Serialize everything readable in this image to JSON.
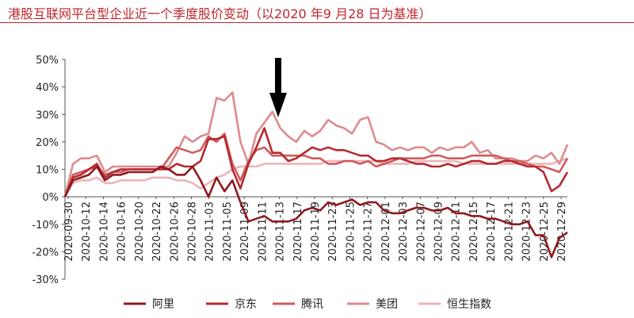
{
  "header": {
    "title": "港股互联网平台型企业近一个季度股价变动（以2020 年9 月28 日为基准）"
  },
  "chart_data": {
    "type": "line",
    "title": "港股互联网平台型企业近一个季度股价变动（以2020 年9 月28 日为基准）",
    "xlabel": "",
    "ylabel": "",
    "ylim": [
      -30,
      50
    ],
    "yticks": [
      "50%",
      "40%",
      "30%",
      "20%",
      "10%",
      "0%",
      "-10%",
      "-20%",
      "-30%"
    ],
    "ytick_values": [
      50,
      40,
      30,
      20,
      10,
      0,
      -10,
      -20,
      -30
    ],
    "xtick_labels": [
      "2020-09-30",
      "2020-10-12",
      "2020-10-14",
      "2020-10-16",
      "2020-10-20",
      "2020-10-22",
      "2020-10-26",
      "2020-10-28",
      "2020-11-03",
      "2020-11-05",
      "2020-11-09",
      "2020-11-11",
      "2020-11-13",
      "2020-11-17",
      "2020-11-19",
      "2020-11-23",
      "2020-11-25",
      "2020-11-27",
      "2020-12-01",
      "2020-12-03",
      "2020-12-07",
      "2020-12-09",
      "2020-12-11",
      "2020-12-15",
      "2020-12-17",
      "2020-12-21",
      "2020-12-23",
      "2020-12-25",
      "2020-12-29"
    ],
    "grid": false,
    "legend_position": "bottom",
    "annotation": "down-arrow at 2020-11-11",
    "series": [
      {
        "name": "阿里",
        "color": "#8b1a1f",
        "values": [
          0,
          6,
          7,
          8,
          11,
          6,
          8,
          8,
          9,
          9,
          9,
          9,
          11,
          10,
          8,
          8,
          11,
          6,
          0,
          7,
          2,
          6,
          -2,
          -9,
          -8,
          -7,
          -9,
          -9,
          -9,
          -8,
          -5,
          -4,
          -5,
          -2,
          -3,
          -2,
          -1,
          -3,
          -2,
          -2,
          -5,
          -6,
          -6,
          -5,
          -4,
          -4,
          -5,
          -5,
          -4,
          -6,
          -6,
          -7,
          -7,
          -8,
          -8,
          -9,
          -10,
          -10,
          -9,
          -14,
          -14,
          -22,
          -15,
          -13
        ]
      },
      {
        "name": "京东",
        "color": "#b52a30",
        "values": [
          0,
          7,
          8,
          10,
          12,
          7,
          9,
          10,
          10,
          10,
          10,
          10,
          10,
          10,
          12,
          11,
          11,
          13,
          21,
          21,
          22,
          10,
          3,
          12,
          18,
          25,
          16,
          16,
          13,
          14,
          16,
          18,
          17,
          18,
          17,
          17,
          16,
          15,
          15,
          13,
          13,
          14,
          14,
          13,
          12,
          12,
          11,
          11,
          12,
          11,
          12,
          13,
          13,
          12,
          12,
          13,
          13,
          12,
          11,
          11,
          9,
          2,
          4,
          9
        ]
      },
      {
        "name": "腾讯",
        "color": "#cf5a5e",
        "values": [
          0,
          8,
          9,
          10,
          11,
          8,
          9,
          9,
          10,
          10,
          10,
          10,
          10,
          14,
          18,
          17,
          16,
          17,
          22,
          20,
          23,
          12,
          6,
          13,
          17,
          18,
          15,
          15,
          15,
          15,
          15,
          14,
          14,
          12,
          12,
          13,
          13,
          12,
          13,
          11,
          12,
          13,
          14,
          14,
          14,
          14,
          15,
          15,
          14,
          14,
          14,
          15,
          15,
          15,
          15,
          14,
          13,
          13,
          12,
          11,
          11,
          10,
          9,
          14
        ]
      },
      {
        "name": "美团",
        "color": "#de8a8d",
        "values": [
          0,
          12,
          14,
          14,
          15,
          9,
          11,
          11,
          11,
          11,
          11,
          11,
          11,
          11,
          16,
          22,
          20,
          22,
          23,
          36,
          35,
          38,
          20,
          12,
          23,
          27,
          31,
          25,
          22,
          20,
          24,
          22,
          24,
          28,
          26,
          25,
          23,
          28,
          29,
          20,
          19,
          17,
          18,
          17,
          18,
          18,
          16,
          18,
          17,
          18,
          18,
          20,
          16,
          17,
          14,
          14,
          14,
          13,
          13,
          15,
          14,
          16,
          12,
          19
        ]
      },
      {
        "name": "恒生指数",
        "color": "#eeb5b6",
        "values": [
          0,
          5,
          6,
          6,
          7,
          5,
          5,
          6,
          6,
          6,
          6,
          7,
          7,
          7,
          6,
          6,
          5,
          3,
          5,
          7,
          8,
          10,
          11,
          11,
          11,
          12,
          12,
          12,
          12,
          12,
          12,
          12,
          12,
          13,
          13,
          13,
          13,
          13,
          13,
          13,
          12,
          12,
          12,
          12,
          13,
          13,
          13,
          13,
          13,
          13,
          12,
          12,
          12,
          12,
          12,
          12,
          12,
          12,
          12,
          12,
          12,
          12,
          13,
          14
        ]
      }
    ]
  }
}
